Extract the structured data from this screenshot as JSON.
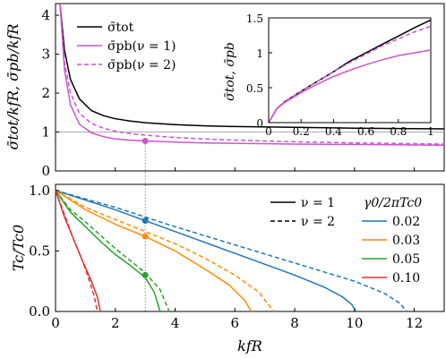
{
  "chart_data": [
    {
      "type": "line",
      "xlabel": "",
      "ylabel": "σ̄tot/kfR, σ̄pb/kfR",
      "xlim": [
        0,
        13
      ],
      "ylim": [
        0,
        4.3
      ],
      "xticks": [
        0,
        2,
        4,
        6,
        8,
        10,
        12
      ],
      "yticks": [
        0,
        1,
        2,
        3,
        4
      ],
      "grid": false,
      "legend": "top-left",
      "reference_line_y": 1,
      "marker_x": 3.0,
      "series": [
        {
          "name": "σ̄tot",
          "color": "#000000",
          "dash": "solid",
          "x": [
            0.15,
            0.3,
            0.5,
            0.8,
            1.2,
            1.6,
            2,
            2.5,
            3,
            4,
            5,
            6,
            8,
            10,
            13
          ],
          "y": [
            4.3,
            3.1,
            2.35,
            1.85,
            1.55,
            1.42,
            1.34,
            1.28,
            1.24,
            1.19,
            1.16,
            1.14,
            1.12,
            1.1,
            1.08
          ]
        },
        {
          "name": "σ̄pb(ν = 1)",
          "color": "#cc55cc",
          "dash": "solid",
          "x": [
            0.15,
            0.3,
            0.5,
            0.8,
            1.2,
            1.6,
            2,
            2.5,
            3,
            4,
            5,
            6,
            8,
            10,
            13
          ],
          "y": [
            4.3,
            2.6,
            1.7,
            1.2,
            0.98,
            0.88,
            0.82,
            0.79,
            0.77,
            0.74,
            0.72,
            0.71,
            0.69,
            0.68,
            0.66
          ]
        },
        {
          "name": "σ̄pb(ν = 2)",
          "color": "#cc55cc",
          "dash": "dashed",
          "x": [
            0.15,
            0.3,
            0.5,
            0.8,
            1.2,
            1.6,
            2,
            2.5,
            3,
            4,
            5,
            6,
            8,
            10,
            13
          ],
          "y": [
            4.3,
            2.8,
            2.0,
            1.48,
            1.22,
            1.1,
            1.02,
            0.96,
            0.92,
            0.86,
            0.82,
            0.79,
            0.75,
            0.72,
            0.69
          ]
        }
      ],
      "markers": [
        {
          "x": 3.0,
          "y": 0.77,
          "color": "#cc55cc"
        }
      ]
    },
    {
      "type": "line",
      "inset": true,
      "xlabel": "",
      "ylabel": "σ̄tot, σ̄pb",
      "xlim": [
        0,
        1
      ],
      "ylim": [
        0,
        1.5
      ],
      "xticks": [
        0,
        0.2,
        0.4,
        0.6,
        0.8,
        1
      ],
      "xtick_labels": [
        "0",
        "0.2",
        "0.4",
        "0.6",
        "0.8",
        "1"
      ],
      "yticks": [
        0,
        0.5,
        1,
        1.5
      ],
      "ytick_labels": [
        "0",
        "0.5",
        "1",
        "1.5"
      ],
      "series": [
        {
          "name": "σ̄tot",
          "color": "#000000",
          "dash": "solid",
          "x": [
            0,
            0.05,
            0.1,
            0.2,
            0.3,
            0.4,
            0.5,
            0.6,
            0.7,
            0.8,
            0.9,
            1.0
          ],
          "y": [
            0,
            0.2,
            0.3,
            0.45,
            0.59,
            0.73,
            0.88,
            1.0,
            1.12,
            1.24,
            1.36,
            1.47
          ]
        },
        {
          "name": "σ̄pb(ν = 1)",
          "color": "#cc55cc",
          "dash": "solid",
          "x": [
            0,
            0.05,
            0.1,
            0.2,
            0.3,
            0.4,
            0.5,
            0.6,
            0.7,
            0.8,
            0.9,
            1.0
          ],
          "y": [
            0,
            0.2,
            0.29,
            0.43,
            0.55,
            0.66,
            0.75,
            0.83,
            0.9,
            0.96,
            1.0,
            1.04
          ]
        },
        {
          "name": "σ̄pb(ν = 2)",
          "color": "#cc55cc",
          "dash": "dashed",
          "x": [
            0,
            0.05,
            0.1,
            0.2,
            0.3,
            0.4,
            0.5,
            0.6,
            0.7,
            0.8,
            0.9,
            1.0
          ],
          "y": [
            0,
            0.2,
            0.3,
            0.45,
            0.59,
            0.73,
            0.86,
            0.98,
            1.1,
            1.2,
            1.3,
            1.38
          ]
        }
      ]
    },
    {
      "type": "line",
      "xlabel": "kfR",
      "ylabel": "Tc/Tc0",
      "xlim": [
        0,
        13
      ],
      "ylim": [
        0,
        1.05
      ],
      "xticks": [
        0,
        2,
        4,
        6,
        8,
        10,
        12
      ],
      "xtick_labels": [
        "0",
        "2",
        "4",
        "6",
        "8",
        "10",
        "12"
      ],
      "yticks": [
        0,
        0.5,
        1
      ],
      "ytick_labels": [
        "0.0",
        "0.5",
        "1.0"
      ],
      "grid": false,
      "legend": "top-right",
      "legend_style": {
        "title": "γ0/2πTc0",
        "solid_label": "ν = 1",
        "dashed_label": "ν = 2"
      },
      "marker_x": 3.0,
      "series": [
        {
          "name": "0.02",
          "color": "#1f77b4",
          "dash": "solid",
          "x": [
            0,
            2,
            4,
            6,
            8,
            9,
            9.6,
            9.9,
            10.05
          ],
          "y": [
            1.0,
            0.84,
            0.66,
            0.48,
            0.3,
            0.2,
            0.12,
            0.06,
            0
          ]
        },
        {
          "name": "0.02",
          "color": "#1f77b4",
          "dash": "dashed",
          "x": [
            0,
            2,
            4,
            6,
            8,
            10,
            11,
            11.5,
            11.75
          ],
          "y": [
            1.0,
            0.86,
            0.7,
            0.55,
            0.4,
            0.25,
            0.15,
            0.07,
            0
          ]
        },
        {
          "name": "0.03",
          "color": "#ff8c00",
          "dash": "solid",
          "x": [
            0,
            1,
            2,
            3,
            4,
            5,
            5.8,
            6.3,
            6.55
          ],
          "y": [
            1.0,
            0.84,
            0.72,
            0.62,
            0.5,
            0.35,
            0.22,
            0.1,
            0
          ]
        },
        {
          "name": "0.03",
          "color": "#ff8c00",
          "dash": "dashed",
          "x": [
            0,
            1,
            2,
            3,
            4,
            5,
            6,
            6.8,
            7.3
          ],
          "y": [
            1.0,
            0.86,
            0.76,
            0.66,
            0.56,
            0.44,
            0.3,
            0.16,
            0
          ]
        },
        {
          "name": "0.05",
          "color": "#2ca02c",
          "dash": "solid",
          "x": [
            0,
            0.5,
            1,
            1.5,
            2,
            2.5,
            3,
            3.3,
            3.5
          ],
          "y": [
            1.0,
            0.82,
            0.7,
            0.58,
            0.47,
            0.38,
            0.28,
            0.16,
            0
          ]
        },
        {
          "name": "0.05",
          "color": "#2ca02c",
          "dash": "dashed",
          "x": [
            0,
            0.5,
            1,
            1.5,
            2,
            2.5,
            3,
            3.5,
            3.8
          ],
          "y": [
            1.0,
            0.84,
            0.74,
            0.63,
            0.52,
            0.42,
            0.32,
            0.18,
            0
          ]
        },
        {
          "name": "0.10",
          "color": "#e03030",
          "dash": "solid",
          "x": [
            0,
            0.3,
            0.6,
            0.9,
            1.2,
            1.4,
            1.5
          ],
          "y": [
            1.0,
            0.78,
            0.6,
            0.42,
            0.25,
            0.12,
            0
          ]
        },
        {
          "name": "0.10",
          "color": "#e03030",
          "dash": "dashed",
          "x": [
            0,
            0.3,
            0.6,
            0.9,
            1.1,
            1.3,
            1.4
          ],
          "y": [
            1.0,
            0.8,
            0.6,
            0.42,
            0.28,
            0.12,
            0
          ]
        }
      ],
      "markers": [
        {
          "x": 3.0,
          "y": 0.75,
          "color": "#1f77b4"
        },
        {
          "x": 3.0,
          "y": 0.62,
          "color": "#ff8c00"
        },
        {
          "x": 3.0,
          "y": 0.3,
          "color": "#2ca02c"
        }
      ]
    }
  ],
  "legend_top": {
    "items": [
      {
        "label": "σ̄tot",
        "color": "#000000",
        "dash": "solid"
      },
      {
        "label": "σ̄pb(ν = 1)",
        "color": "#cc55cc",
        "dash": "solid"
      },
      {
        "label": "σ̄pb(ν = 2)",
        "color": "#cc55cc",
        "dash": "dashed"
      }
    ]
  }
}
